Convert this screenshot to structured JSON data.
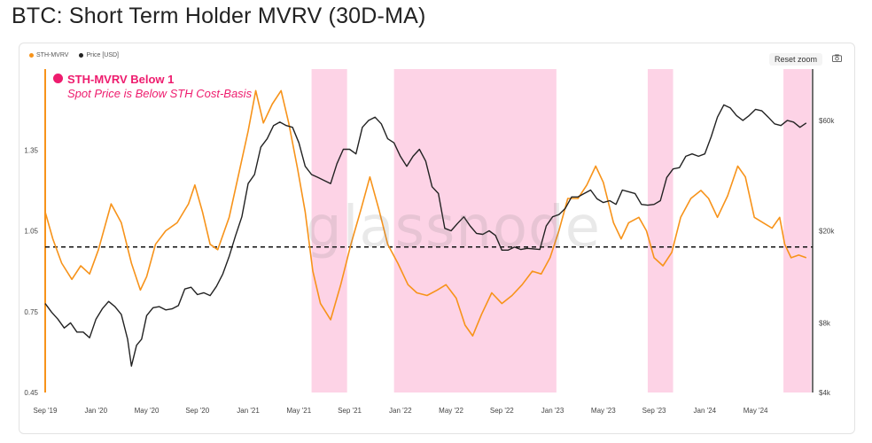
{
  "page": {
    "title": "BTC: Short Term Holder MVRV (30D-MA)"
  },
  "toolbar": {
    "reset_zoom_label": "Reset zoom",
    "camera_icon": "camera-icon"
  },
  "annotation": {
    "title": "STH-MVRV Below 1",
    "subtitle": "Spot Price is Below STH Cost-Basis"
  },
  "watermark": "glassnode",
  "colors": {
    "mvrv": "#f7931a",
    "price": "#222222",
    "shade": "#fdd3e6",
    "annotation": "#ee1c6e"
  },
  "chart_data": {
    "type": "line",
    "x_tick_labels": [
      "Sep '19",
      "Jan '20",
      "May '20",
      "Sep '20",
      "Jan '21",
      "May '21",
      "Sep '21",
      "Jan '22",
      "May '22",
      "Sep '22",
      "Jan '23",
      "May '23",
      "Sep '23",
      "Jan '24",
      "May '24"
    ],
    "x_ticks_month_index": [
      0,
      4,
      8,
      12,
      16,
      20,
      24,
      28,
      32,
      36,
      40,
      44,
      48,
      52,
      56
    ],
    "x_range_months": [
      0,
      60.5
    ],
    "y_left": {
      "ticks": [
        0.45,
        0.75,
        1.05,
        1.35
      ],
      "range": [
        0.45,
        1.65
      ]
    },
    "y_right": {
      "ticks": [
        4000,
        8000,
        20000,
        60000
      ],
      "tick_labels": [
        "$4k",
        "$8k",
        "$20k",
        "$60k"
      ],
      "scale": "log",
      "range": [
        4000,
        100000
      ]
    },
    "reference_line": {
      "value": 0.99,
      "style": "dashed"
    },
    "shaded_periods_months": [
      [
        21,
        23.8
      ],
      [
        27.5,
        40.3
      ],
      [
        47.5,
        49.5
      ],
      [
        58.2,
        60.4
      ]
    ],
    "legend": [
      "STH-MVRV",
      "Price [USD]"
    ],
    "series": [
      {
        "name": "STH-MVRV",
        "axis": "left",
        "color": "#f7931a",
        "points": [
          [
            0,
            1.12
          ],
          [
            0.6,
            1.02
          ],
          [
            1.3,
            0.93
          ],
          [
            2.1,
            0.87
          ],
          [
            2.8,
            0.92
          ],
          [
            3.5,
            0.89
          ],
          [
            4.2,
            0.98
          ],
          [
            5.2,
            1.15
          ],
          [
            6,
            1.08
          ],
          [
            6.8,
            0.93
          ],
          [
            7.5,
            0.83
          ],
          [
            8,
            0.88
          ],
          [
            8.7,
            1.0
          ],
          [
            9.5,
            1.05
          ],
          [
            10.4,
            1.08
          ],
          [
            11.3,
            1.15
          ],
          [
            11.8,
            1.22
          ],
          [
            12.4,
            1.12
          ],
          [
            13,
            1.0
          ],
          [
            13.6,
            0.98
          ],
          [
            14.5,
            1.1
          ],
          [
            15.3,
            1.27
          ],
          [
            16,
            1.42
          ],
          [
            16.6,
            1.57
          ],
          [
            17.2,
            1.45
          ],
          [
            17.9,
            1.52
          ],
          [
            18.6,
            1.57
          ],
          [
            19.2,
            1.45
          ],
          [
            19.9,
            1.28
          ],
          [
            20.5,
            1.12
          ],
          [
            21.1,
            0.9
          ],
          [
            21.7,
            0.78
          ],
          [
            22.5,
            0.72
          ],
          [
            23.3,
            0.85
          ],
          [
            24.1,
            1.0
          ],
          [
            24.9,
            1.13
          ],
          [
            25.6,
            1.25
          ],
          [
            26.3,
            1.13
          ],
          [
            27,
            1.0
          ],
          [
            27.8,
            0.93
          ],
          [
            28.6,
            0.85
          ],
          [
            29.3,
            0.82
          ],
          [
            30.1,
            0.81
          ],
          [
            30.9,
            0.83
          ],
          [
            31.6,
            0.85
          ],
          [
            32.4,
            0.8
          ],
          [
            33.1,
            0.7
          ],
          [
            33.7,
            0.66
          ],
          [
            34.4,
            0.74
          ],
          [
            35.2,
            0.82
          ],
          [
            36,
            0.78
          ],
          [
            36.8,
            0.81
          ],
          [
            37.6,
            0.85
          ],
          [
            38.4,
            0.9
          ],
          [
            39.1,
            0.89
          ],
          [
            39.8,
            0.95
          ],
          [
            40.5,
            1.05
          ],
          [
            41.2,
            1.17
          ],
          [
            42,
            1.17
          ],
          [
            42.7,
            1.22
          ],
          [
            43.4,
            1.29
          ],
          [
            44,
            1.23
          ],
          [
            44.8,
            1.08
          ],
          [
            45.4,
            1.02
          ],
          [
            46,
            1.08
          ],
          [
            46.8,
            1.1
          ],
          [
            47.4,
            1.05
          ],
          [
            48,
            0.95
          ],
          [
            48.7,
            0.92
          ],
          [
            49.4,
            0.97
          ],
          [
            50.1,
            1.1
          ],
          [
            50.9,
            1.17
          ],
          [
            51.7,
            1.2
          ],
          [
            52.3,
            1.17
          ],
          [
            53,
            1.1
          ],
          [
            53.8,
            1.18
          ],
          [
            54.6,
            1.29
          ],
          [
            55.2,
            1.25
          ],
          [
            55.9,
            1.1
          ],
          [
            56.6,
            1.08
          ],
          [
            57.3,
            1.06
          ],
          [
            57.9,
            1.1
          ],
          [
            58.3,
            1.0
          ],
          [
            58.8,
            0.95
          ],
          [
            59.4,
            0.96
          ],
          [
            60,
            0.95
          ]
        ]
      },
      {
        "name": "Price [USD]",
        "axis": "right",
        "color": "#222222",
        "points": [
          [
            0,
            9700
          ],
          [
            0.5,
            8900
          ],
          [
            1,
            8300
          ],
          [
            1.5,
            7600
          ],
          [
            2,
            8000
          ],
          [
            2.5,
            7300
          ],
          [
            3,
            7300
          ],
          [
            3.5,
            6900
          ],
          [
            4,
            8300
          ],
          [
            4.5,
            9200
          ],
          [
            5,
            9900
          ],
          [
            5.5,
            9400
          ],
          [
            6,
            8700
          ],
          [
            6.5,
            6800
          ],
          [
            6.8,
            5200
          ],
          [
            7.2,
            6400
          ],
          [
            7.6,
            6800
          ],
          [
            8,
            8600
          ],
          [
            8.5,
            9300
          ],
          [
            9,
            9400
          ],
          [
            9.5,
            9100
          ],
          [
            10,
            9200
          ],
          [
            10.5,
            9500
          ],
          [
            11,
            11200
          ],
          [
            11.5,
            11400
          ],
          [
            12,
            10600
          ],
          [
            12.5,
            10800
          ],
          [
            13,
            10500
          ],
          [
            13.5,
            11500
          ],
          [
            14,
            13000
          ],
          [
            14.5,
            15500
          ],
          [
            15,
            19000
          ],
          [
            15.5,
            23000
          ],
          [
            16,
            32000
          ],
          [
            16.5,
            35000
          ],
          [
            17,
            46000
          ],
          [
            17.5,
            50000
          ],
          [
            18,
            57000
          ],
          [
            18.5,
            59000
          ],
          [
            19,
            57000
          ],
          [
            19.5,
            56000
          ],
          [
            20,
            48000
          ],
          [
            20.5,
            38000
          ],
          [
            21,
            35000
          ],
          [
            21.5,
            34000
          ],
          [
            22,
            33000
          ],
          [
            22.5,
            32000
          ],
          [
            23,
            39000
          ],
          [
            23.5,
            45000
          ],
          [
            24,
            45000
          ],
          [
            24.5,
            43000
          ],
          [
            25,
            56000
          ],
          [
            25.5,
            60000
          ],
          [
            26,
            62000
          ],
          [
            26.5,
            58000
          ],
          [
            27,
            50000
          ],
          [
            27.5,
            48000
          ],
          [
            28,
            42000
          ],
          [
            28.5,
            38000
          ],
          [
            29,
            42000
          ],
          [
            29.5,
            45000
          ],
          [
            30,
            40000
          ],
          [
            30.5,
            31000
          ],
          [
            31,
            29000
          ],
          [
            31.5,
            20500
          ],
          [
            32,
            20000
          ],
          [
            32.5,
            21500
          ],
          [
            33,
            23000
          ],
          [
            33.5,
            21000
          ],
          [
            34,
            19500
          ],
          [
            34.5,
            19300
          ],
          [
            35,
            20000
          ],
          [
            35.5,
            19100
          ],
          [
            36,
            16500
          ],
          [
            36.5,
            16500
          ],
          [
            37,
            17000
          ],
          [
            37.5,
            16600
          ],
          [
            38,
            16800
          ],
          [
            39,
            16600
          ],
          [
            39.5,
            21000
          ],
          [
            40,
            23000
          ],
          [
            40.5,
            23500
          ],
          [
            41,
            25000
          ],
          [
            41.5,
            28000
          ],
          [
            42,
            28000
          ],
          [
            42.5,
            29000
          ],
          [
            43,
            30000
          ],
          [
            43.5,
            27500
          ],
          [
            44,
            26500
          ],
          [
            44.5,
            27000
          ],
          [
            45,
            26000
          ],
          [
            45.5,
            30000
          ],
          [
            46,
            29500
          ],
          [
            46.5,
            29000
          ],
          [
            47,
            26000
          ],
          [
            47.5,
            25800
          ],
          [
            48,
            26000
          ],
          [
            48.5,
            27000
          ],
          [
            49,
            34000
          ],
          [
            49.5,
            37000
          ],
          [
            50,
            37500
          ],
          [
            50.5,
            42000
          ],
          [
            51,
            43000
          ],
          [
            51.5,
            42000
          ],
          [
            52,
            43000
          ],
          [
            52.5,
            51000
          ],
          [
            53,
            62000
          ],
          [
            53.5,
            70000
          ],
          [
            54,
            68000
          ],
          [
            54.5,
            63000
          ],
          [
            55,
            60000
          ],
          [
            55.5,
            63000
          ],
          [
            56,
            67000
          ],
          [
            56.5,
            66000
          ],
          [
            57,
            62000
          ],
          [
            57.5,
            58000
          ],
          [
            58,
            57000
          ],
          [
            58.5,
            60000
          ],
          [
            59,
            59000
          ],
          [
            59.5,
            56000
          ],
          [
            60,
            58500
          ]
        ]
      }
    ]
  }
}
